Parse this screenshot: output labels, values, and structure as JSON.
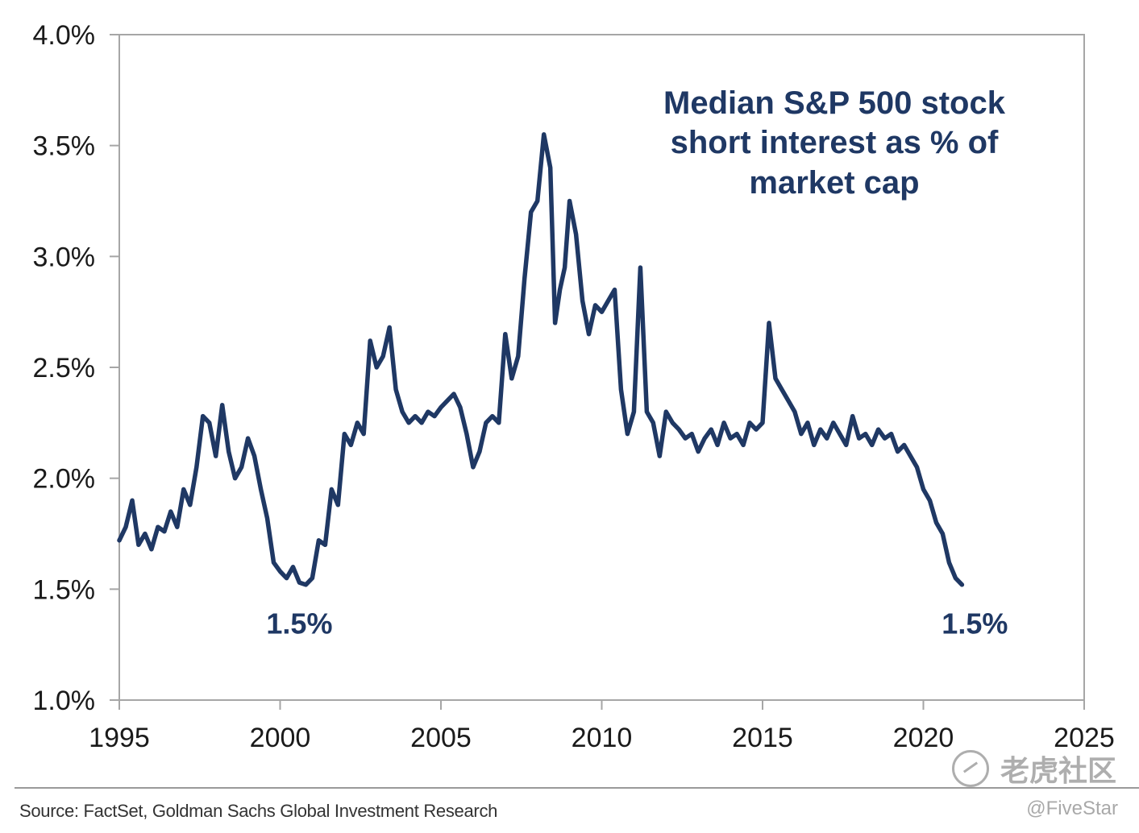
{
  "chart_data": {
    "type": "line",
    "title_lines": [
      "Median S&P 500 stock",
      "short interest as % of",
      "market cap"
    ],
    "xlim": [
      1995,
      2025
    ],
    "ylim": [
      1.0,
      4.0
    ],
    "x_ticks": [
      1995,
      2000,
      2005,
      2010,
      2015,
      2020,
      2025
    ],
    "x_tick_labels": [
      "1995",
      "2000",
      "2005",
      "2010",
      "2015",
      "2020",
      "2025"
    ],
    "y_ticks": [
      1.0,
      1.5,
      2.0,
      2.5,
      3.0,
      3.5,
      4.0
    ],
    "y_tick_labels": [
      "1.0%",
      "1.5%",
      "2.0%",
      "2.5%",
      "3.0%",
      "3.5%",
      "4.0%"
    ],
    "grid": false,
    "line_color": "#1f3864",
    "series": [
      {
        "name": "Median S&P 500 stock short interest as % of market cap",
        "x": [
          1995.0,
          1995.2,
          1995.4,
          1995.6,
          1995.8,
          1996.0,
          1996.2,
          1996.4,
          1996.6,
          1996.8,
          1997.0,
          1997.2,
          1997.4,
          1997.6,
          1997.8,
          1998.0,
          1998.2,
          1998.4,
          1998.6,
          1998.8,
          1999.0,
          1999.2,
          1999.4,
          1999.6,
          1999.8,
          2000.0,
          2000.2,
          2000.4,
          2000.6,
          2000.8,
          2001.0,
          2001.2,
          2001.4,
          2001.6,
          2001.8,
          2002.0,
          2002.2,
          2002.4,
          2002.6,
          2002.8,
          2003.0,
          2003.2,
          2003.4,
          2003.6,
          2003.8,
          2004.0,
          2004.2,
          2004.4,
          2004.6,
          2004.8,
          2005.0,
          2005.2,
          2005.4,
          2005.6,
          2005.8,
          2006.0,
          2006.2,
          2006.4,
          2006.6,
          2006.8,
          2007.0,
          2007.2,
          2007.4,
          2007.6,
          2007.8,
          2008.0,
          2008.2,
          2008.4,
          2008.55,
          2008.7,
          2008.85,
          2009.0,
          2009.2,
          2009.4,
          2009.6,
          2009.8,
          2010.0,
          2010.2,
          2010.4,
          2010.6,
          2010.8,
          2011.0,
          2011.2,
          2011.4,
          2011.6,
          2011.8,
          2012.0,
          2012.2,
          2012.4,
          2012.6,
          2012.8,
          2013.0,
          2013.2,
          2013.4,
          2013.6,
          2013.8,
          2014.0,
          2014.2,
          2014.4,
          2014.6,
          2014.8,
          2015.0,
          2015.2,
          2015.4,
          2015.6,
          2015.8,
          2016.0,
          2016.2,
          2016.4,
          2016.6,
          2016.8,
          2017.0,
          2017.2,
          2017.4,
          2017.6,
          2017.8,
          2018.0,
          2018.2,
          2018.4,
          2018.6,
          2018.8,
          2019.0,
          2019.2,
          2019.4,
          2019.6,
          2019.8,
          2020.0,
          2020.2,
          2020.4,
          2020.6,
          2020.8,
          2021.0,
          2021.2
        ],
        "y": [
          1.72,
          1.78,
          1.9,
          1.7,
          1.75,
          1.68,
          1.78,
          1.76,
          1.85,
          1.78,
          1.95,
          1.88,
          2.05,
          2.28,
          2.25,
          2.1,
          2.33,
          2.12,
          2.0,
          2.05,
          2.18,
          2.1,
          1.95,
          1.82,
          1.62,
          1.58,
          1.55,
          1.6,
          1.53,
          1.52,
          1.55,
          1.72,
          1.7,
          1.95,
          1.88,
          2.2,
          2.15,
          2.25,
          2.2,
          2.62,
          2.5,
          2.55,
          2.68,
          2.4,
          2.3,
          2.25,
          2.28,
          2.25,
          2.3,
          2.28,
          2.32,
          2.35,
          2.38,
          2.32,
          2.2,
          2.05,
          2.12,
          2.25,
          2.28,
          2.25,
          2.65,
          2.45,
          2.55,
          2.9,
          3.2,
          3.25,
          3.55,
          3.4,
          2.7,
          2.85,
          2.95,
          3.25,
          3.1,
          2.8,
          2.65,
          2.78,
          2.75,
          2.8,
          2.85,
          2.4,
          2.2,
          2.3,
          2.95,
          2.3,
          2.25,
          2.1,
          2.3,
          2.25,
          2.22,
          2.18,
          2.2,
          2.12,
          2.18,
          2.22,
          2.15,
          2.25,
          2.18,
          2.2,
          2.15,
          2.25,
          2.22,
          2.25,
          2.7,
          2.45,
          2.4,
          2.35,
          2.3,
          2.2,
          2.25,
          2.15,
          2.22,
          2.18,
          2.25,
          2.2,
          2.15,
          2.28,
          2.18,
          2.2,
          2.15,
          2.22,
          2.18,
          2.2,
          2.12,
          2.15,
          2.1,
          2.05,
          1.95,
          1.9,
          1.8,
          1.75,
          1.62,
          1.55,
          1.52
        ]
      }
    ],
    "annotations": [
      {
        "text": "1.5%",
        "x": 2000.6,
        "y": 1.5
      },
      {
        "text": "1.5%",
        "x": 2021.6,
        "y": 1.5
      }
    ]
  },
  "source": "Source: FactSet, Goldman Sachs Global Investment Research",
  "watermark": {
    "brand": "老虎社区",
    "handle": "@FiveStar"
  }
}
